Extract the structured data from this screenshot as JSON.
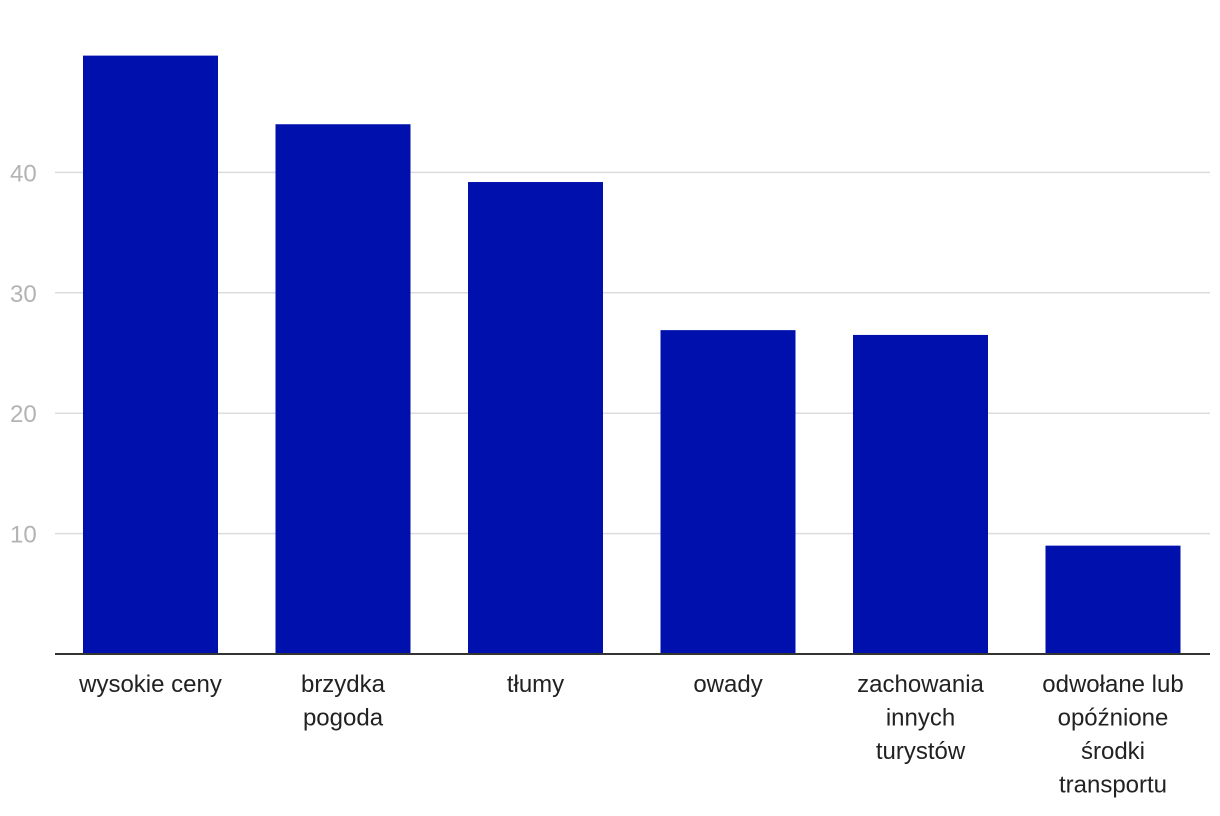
{
  "chart_data": {
    "type": "bar",
    "title": "",
    "xlabel": "",
    "ylabel": "",
    "categories": [
      [
        "wysokie ceny"
      ],
      [
        "brzydka",
        "pogoda"
      ],
      [
        "tłumy"
      ],
      [
        "owady"
      ],
      [
        "zachowania",
        "innych",
        "turystów"
      ],
      [
        "odwołane lub",
        "opóźnione",
        "środki",
        "transportu"
      ]
    ],
    "values": [
      49.7,
      44.0,
      39.2,
      26.9,
      26.5,
      9.0
    ],
    "yticks": [
      10,
      20,
      30,
      40
    ],
    "ylim": [
      0,
      50
    ],
    "grid": true,
    "colors": {
      "bar": "#0010ad"
    }
  }
}
